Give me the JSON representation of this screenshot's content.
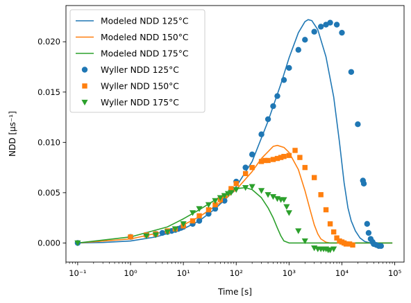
{
  "chart_data": {
    "type": "scatter",
    "xlabel": "Time [s]",
    "ylabel": "NDD [μs⁻¹]",
    "xscale": "log",
    "xlim": [
      0.06,
      150000
    ],
    "ylim": [
      -0.0019,
      0.0236
    ],
    "grid": false,
    "legend_position": "top-left",
    "x_ticks": [
      {
        "value": 0.1,
        "label": "10⁻¹"
      },
      {
        "value": 1,
        "label": "10⁰"
      },
      {
        "value": 10,
        "label": "10¹"
      },
      {
        "value": 100,
        "label": "10²"
      },
      {
        "value": 1000,
        "label": "10³"
      },
      {
        "value": 10000,
        "label": "10⁴"
      },
      {
        "value": 100000,
        "label": "10⁵"
      }
    ],
    "y_ticks": [
      {
        "value": 0.0,
        "label": "0.000"
      },
      {
        "value": 0.005,
        "label": "0.005"
      },
      {
        "value": 0.01,
        "label": "0.010"
      },
      {
        "value": 0.015,
        "label": "0.015"
      },
      {
        "value": 0.02,
        "label": "0.020"
      }
    ],
    "lines": [
      {
        "name": "Modeled NDD 125°C",
        "color": "#1f77b4",
        "points": [
          [
            0.1,
            0
          ],
          [
            0.3,
            5e-05
          ],
          [
            1,
            0.0002
          ],
          [
            3,
            0.0006
          ],
          [
            10,
            0.0014
          ],
          [
            20,
            0.0022
          ],
          [
            40,
            0.0034
          ],
          [
            70,
            0.0046
          ],
          [
            100,
            0.0056
          ],
          [
            200,
            0.0081
          ],
          [
            400,
            0.0121
          ],
          [
            700,
            0.0158
          ],
          [
            1000,
            0.0184
          ],
          [
            1500,
            0.0209
          ],
          [
            2000,
            0.022
          ],
          [
            2300,
            0.0222
          ],
          [
            2700,
            0.0221
          ],
          [
            3500,
            0.0212
          ],
          [
            5000,
            0.0185
          ],
          [
            7000,
            0.0145
          ],
          [
            9000,
            0.01
          ],
          [
            11000,
            0.006
          ],
          [
            13000,
            0.0035
          ],
          [
            15000,
            0.0022
          ],
          [
            18000,
            0.0012
          ],
          [
            22000,
            0.0005
          ],
          [
            27000,
            0.00015
          ],
          [
            33000,
            3e-05
          ],
          [
            40000,
            0
          ],
          [
            90000,
            0
          ]
        ]
      },
      {
        "name": "Modeled NDD 150°C",
        "color": "#ff7f0e",
        "points": [
          [
            0.1,
            0
          ],
          [
            1,
            0.0004
          ],
          [
            5,
            0.0012
          ],
          [
            10,
            0.0018
          ],
          [
            20,
            0.0026
          ],
          [
            50,
            0.004
          ],
          [
            100,
            0.0053
          ],
          [
            200,
            0.0071
          ],
          [
            300,
            0.0084
          ],
          [
            500,
            0.0096
          ],
          [
            600,
            0.0097
          ],
          [
            800,
            0.0095
          ],
          [
            1000,
            0.009
          ],
          [
            1500,
            0.0073
          ],
          [
            2000,
            0.0052
          ],
          [
            2500,
            0.0033
          ],
          [
            3000,
            0.0018
          ],
          [
            3500,
            0.0009
          ],
          [
            4000,
            0.0004
          ],
          [
            5000,
            8e-05
          ],
          [
            6000,
            0
          ],
          [
            90000,
            0
          ]
        ]
      },
      {
        "name": "Modeled NDD 175°C",
        "color": "#2ca02c",
        "points": [
          [
            0.1,
            0
          ],
          [
            1,
            0.0006
          ],
          [
            5,
            0.0016
          ],
          [
            10,
            0.0024
          ],
          [
            20,
            0.0033
          ],
          [
            50,
            0.0046
          ],
          [
            100,
            0.0054
          ],
          [
            150,
            0.0055
          ],
          [
            200,
            0.0053
          ],
          [
            300,
            0.0045
          ],
          [
            400,
            0.0035
          ],
          [
            500,
            0.0025
          ],
          [
            600,
            0.0015
          ],
          [
            700,
            0.0007
          ],
          [
            800,
            0.0002
          ],
          [
            1000,
            0
          ],
          [
            90000,
            0
          ]
        ]
      }
    ],
    "scatter": [
      {
        "name": "Wyller NDD 125°C",
        "color": "#1f77b4",
        "marker": "circle",
        "points": [
          [
            0.1,
            0
          ],
          [
            1,
            0.0006
          ],
          [
            2,
            0.0008
          ],
          [
            3,
            0.0009
          ],
          [
            4,
            0.001
          ],
          [
            5,
            0.0011
          ],
          [
            6,
            0.0012
          ],
          [
            7,
            0.0013
          ],
          [
            8,
            0.0014
          ],
          [
            9,
            0.0015
          ],
          [
            10,
            0.0016
          ],
          [
            15,
            0.0019
          ],
          [
            20,
            0.0022
          ],
          [
            30,
            0.0029
          ],
          [
            40,
            0.0034
          ],
          [
            60,
            0.0042
          ],
          [
            80,
            0.0052
          ],
          [
            100,
            0.0061
          ],
          [
            150,
            0.0075
          ],
          [
            200,
            0.0088
          ],
          [
            300,
            0.0108
          ],
          [
            400,
            0.0123
          ],
          [
            500,
            0.0136
          ],
          [
            600,
            0.0146
          ],
          [
            800,
            0.0162
          ],
          [
            1000,
            0.0174
          ],
          [
            1500,
            0.0192
          ],
          [
            2000,
            0.0202
          ],
          [
            3000,
            0.021
          ],
          [
            4000,
            0.0215
          ],
          [
            5000,
            0.0217
          ],
          [
            6000,
            0.0219
          ],
          [
            8000,
            0.0217
          ],
          [
            10000,
            0.0209
          ],
          [
            15000,
            0.017
          ],
          [
            20000,
            0.0118
          ],
          [
            25000,
            0.0062
          ],
          [
            26000,
            0.0059
          ],
          [
            30000,
            0.0019
          ],
          [
            32000,
            0.001
          ],
          [
            35000,
            0.0004
          ],
          [
            38000,
            0.0001
          ],
          [
            40000,
            -0.0001
          ],
          [
            45000,
            -0.0002
          ],
          [
            50000,
            -0.0003
          ],
          [
            55000,
            -0.0003
          ]
        ]
      },
      {
        "name": "Wyller NDD 150°C",
        "color": "#ff7f0e",
        "marker": "square",
        "points": [
          [
            1,
            0.0006
          ],
          [
            2,
            0.0008
          ],
          [
            3,
            0.0009
          ],
          [
            5,
            0.0012
          ],
          [
            7,
            0.0014
          ],
          [
            10,
            0.0017
          ],
          [
            15,
            0.0022
          ],
          [
            20,
            0.0027
          ],
          [
            30,
            0.0033
          ],
          [
            40,
            0.0038
          ],
          [
            50,
            0.0043
          ],
          [
            60,
            0.0047
          ],
          [
            80,
            0.0054
          ],
          [
            100,
            0.0059
          ],
          [
            150,
            0.0069
          ],
          [
            200,
            0.0075
          ],
          [
            300,
            0.0081
          ],
          [
            350,
            0.0082
          ],
          [
            400,
            0.0082
          ],
          [
            500,
            0.0083
          ],
          [
            600,
            0.0084
          ],
          [
            700,
            0.0085
          ],
          [
            800,
            0.0086
          ],
          [
            1000,
            0.0087
          ],
          [
            1300,
            0.0092
          ],
          [
            1600,
            0.0085
          ],
          [
            2000,
            0.0075
          ],
          [
            3000,
            0.0065
          ],
          [
            4000,
            0.0048
          ],
          [
            5000,
            0.0033
          ],
          [
            6000,
            0.0019
          ],
          [
            7000,
            0.0011
          ],
          [
            8000,
            0.0005
          ],
          [
            9000,
            0.0002
          ],
          [
            10000,
            0.0001
          ],
          [
            11000,
            0
          ],
          [
            12000,
            -0.0001
          ],
          [
            14000,
            -0.0001
          ],
          [
            16000,
            -0.0002
          ]
        ]
      },
      {
        "name": "Wyller NDD 175°C",
        "color": "#2ca02c",
        "marker": "triangle-down",
        "points": [
          [
            0.1,
            0
          ],
          [
            2,
            0.0007
          ],
          [
            3,
            0.0008
          ],
          [
            5,
            0.0011
          ],
          [
            7,
            0.0014
          ],
          [
            10,
            0.0019
          ],
          [
            15,
            0.003
          ],
          [
            20,
            0.0034
          ],
          [
            30,
            0.0038
          ],
          [
            40,
            0.0042
          ],
          [
            50,
            0.0045
          ],
          [
            60,
            0.0047
          ],
          [
            70,
            0.0049
          ],
          [
            80,
            0.005
          ],
          [
            100,
            0.0053
          ],
          [
            150,
            0.0055
          ],
          [
            200,
            0.0056
          ],
          [
            300,
            0.0052
          ],
          [
            400,
            0.0048
          ],
          [
            500,
            0.0046
          ],
          [
            600,
            0.0044
          ],
          [
            700,
            0.0043
          ],
          [
            800,
            0.0043
          ],
          [
            900,
            0.0036
          ],
          [
            1000,
            0.003
          ],
          [
            1500,
            0.0012
          ],
          [
            2000,
            0.0002
          ],
          [
            3000,
            -0.0005
          ],
          [
            3500,
            -0.0006
          ],
          [
            4000,
            -0.0006
          ],
          [
            4500,
            -0.0006
          ],
          [
            5000,
            -0.0006
          ],
          [
            5500,
            -0.0007
          ],
          [
            6000,
            -0.0007
          ],
          [
            7000,
            -0.0006
          ]
        ]
      }
    ]
  }
}
